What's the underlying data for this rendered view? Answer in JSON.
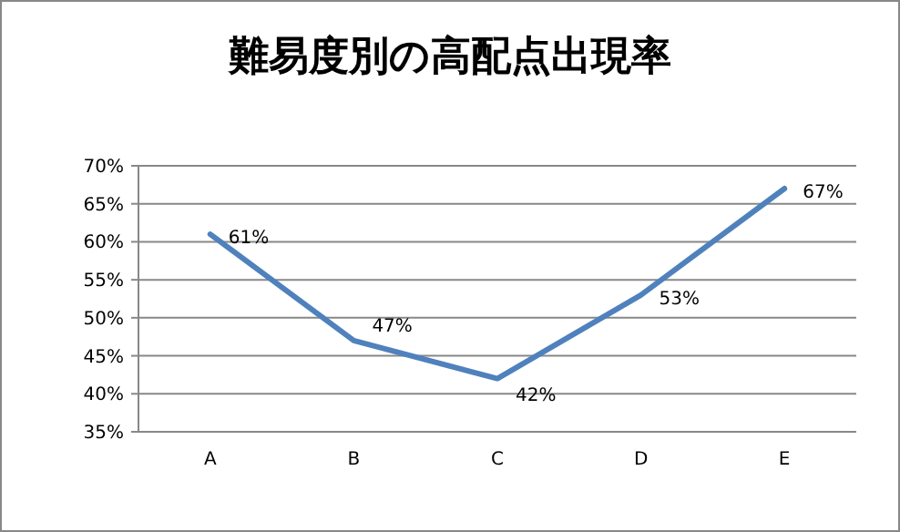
{
  "chart_data": {
    "type": "line",
    "title": "難易度別の高配点出現率",
    "categories": [
      "A",
      "B",
      "C",
      "D",
      "E"
    ],
    "series": [
      {
        "color": "#4f81bd",
        "values": [
          61,
          47,
          42,
          53,
          67
        ],
        "value_labels": [
          "61%",
          "47%",
          "42%",
          "53%",
          "67%"
        ]
      }
    ],
    "ylim": [
      35,
      70
    ],
    "yticks": [
      {
        "value": 35,
        "label": "35%"
      },
      {
        "value": 40,
        "label": "40%"
      },
      {
        "value": 45,
        "label": "45%"
      },
      {
        "value": 50,
        "label": "50%"
      },
      {
        "value": 55,
        "label": "55%"
      },
      {
        "value": 60,
        "label": "60%"
      },
      {
        "value": 65,
        "label": "65%"
      },
      {
        "value": 70,
        "label": "70%"
      }
    ],
    "grid": "y",
    "marker": "none",
    "line_style": "solid"
  }
}
